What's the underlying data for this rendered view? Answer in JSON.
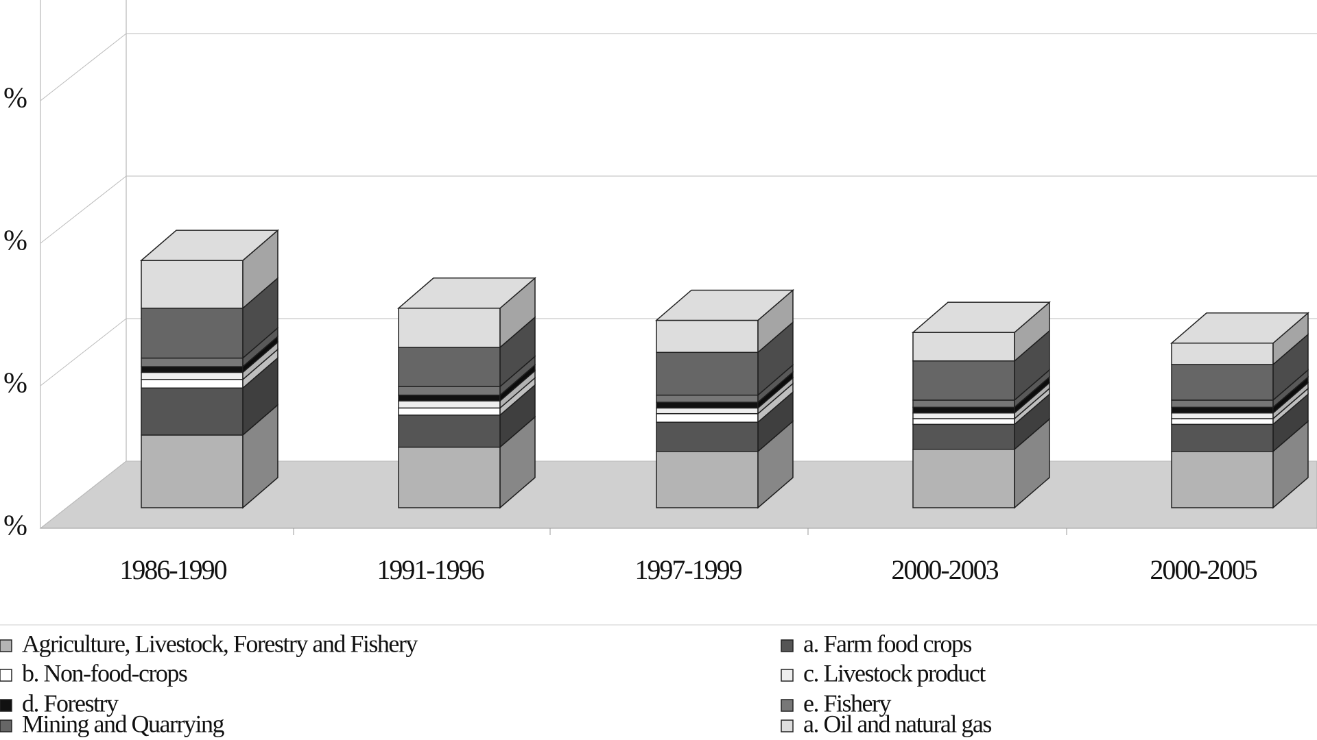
{
  "chart_data": {
    "type": "bar3d_stacked",
    "categories": [
      "1986-1990",
      "1991-1996",
      "1997-1999",
      "2000-2003",
      "2000-2005"
    ],
    "series": [
      {
        "name": "Agriculture, Livestock, Forestry and Fishery",
        "color": "#b4b4b4",
        "values": [
          10.2,
          8.5,
          7.9,
          8.2,
          7.9
        ]
      },
      {
        "name": "a. Farm food crops",
        "color": "#555555",
        "values": [
          6.6,
          4.5,
          4.1,
          3.5,
          3.8
        ]
      },
      {
        "name": "b. Non-food-crops",
        "color": "#ffffff",
        "values": [
          1.2,
          1.0,
          1.2,
          0.8,
          0.8
        ]
      },
      {
        "name": "c. Livestock product",
        "color": "#eeeeee",
        "values": [
          1.0,
          1.0,
          0.8,
          0.8,
          0.8
        ]
      },
      {
        "name": "d. Forestry",
        "color": "#111111",
        "values": [
          0.8,
          0.8,
          0.8,
          0.8,
          0.8
        ]
      },
      {
        "name": "e. Fishery",
        "color": "#777777",
        "values": [
          1.2,
          1.2,
          1.0,
          1.0,
          1.0
        ]
      },
      {
        "name": "Mining and Quarrying",
        "color": "#666666",
        "values": [
          7.0,
          5.5,
          6.0,
          5.5,
          5.0
        ]
      },
      {
        "name": "a. Oil and natural gas",
        "color": "#dddddd",
        "values": [
          6.7,
          5.5,
          4.5,
          4.0,
          3.0
        ]
      }
    ],
    "ylim": [
      0,
      100
    ],
    "yticks": [
      {
        "value": 0,
        "label": "%"
      },
      {
        "value": 20,
        "label": "%"
      },
      {
        "value": 40,
        "label": "%"
      },
      {
        "value": 60,
        "label": "%"
      }
    ],
    "grid": true
  }
}
